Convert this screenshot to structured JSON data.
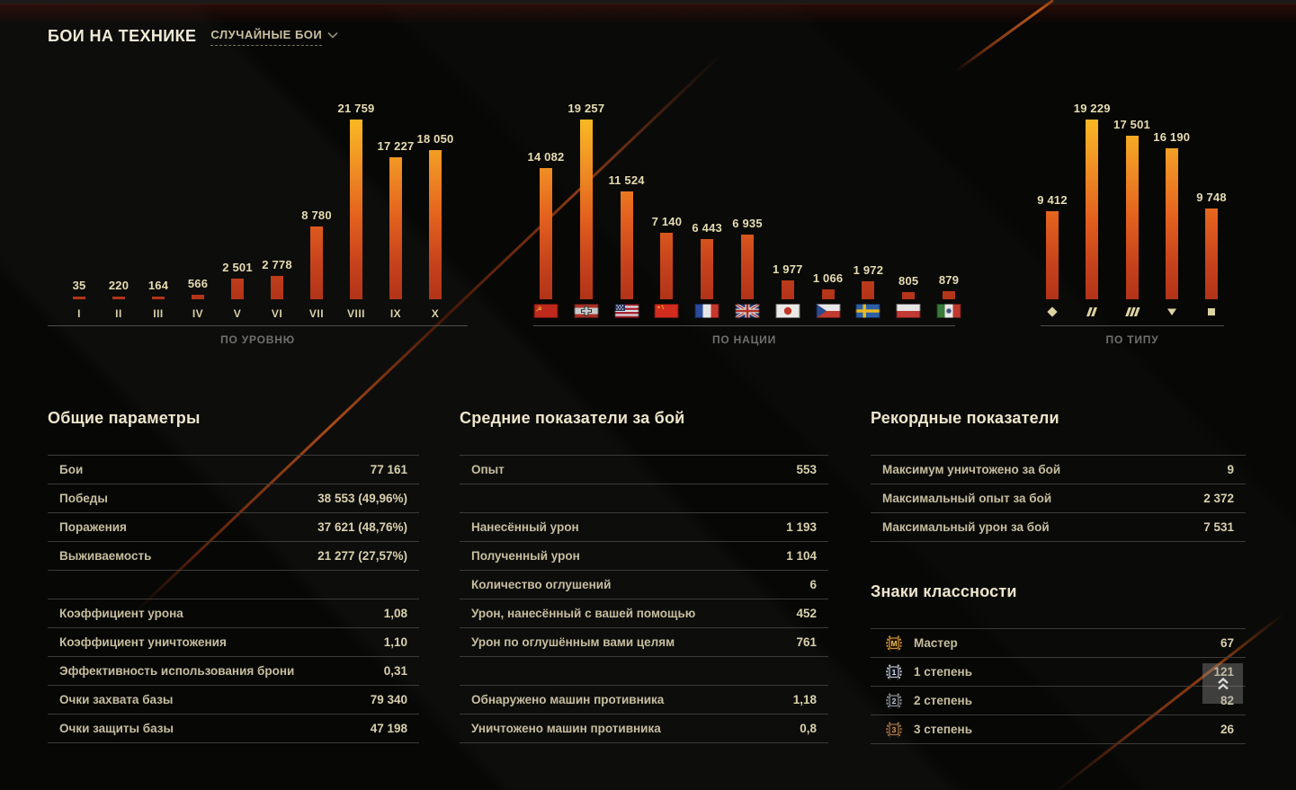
{
  "header": {
    "title": "БОИ НА ТЕХНИКЕ",
    "filter_label": "СЛУЧАЙНЫЕ БОИ",
    "filter_icon": "chevron-down-icon"
  },
  "chart_data": [
    {
      "type": "bar",
      "id": "by-level",
      "axis_title": "ПО УРОВНЮ",
      "category_kind": "roman-tier",
      "categories": [
        "I",
        "II",
        "III",
        "IV",
        "V",
        "VI",
        "VII",
        "VIII",
        "IX",
        "X"
      ],
      "values": [
        35,
        220,
        164,
        566,
        2501,
        2778,
        8780,
        21759,
        17227,
        18050
      ],
      "value_labels": [
        "35",
        "220",
        "164",
        "566",
        "2 501",
        "2 778",
        "8 780",
        "21 759",
        "17 227",
        "18 050"
      ],
      "ylim": [
        0,
        21759
      ],
      "grid": false,
      "legend": "none"
    },
    {
      "type": "bar",
      "id": "by-nation",
      "axis_title": "ПО НАЦИИ",
      "category_kind": "flag",
      "categories": [
        "ussr",
        "germany",
        "usa",
        "china",
        "france",
        "uk",
        "japan",
        "czech",
        "sweden",
        "poland",
        "italy"
      ],
      "values": [
        14082,
        19257,
        11524,
        7140,
        6443,
        6935,
        1977,
        1066,
        1972,
        805,
        879
      ],
      "value_labels": [
        "14 082",
        "19 257",
        "11 524",
        "7 140",
        "6 443",
        "6 935",
        "1 977",
        "1 066",
        "1 972",
        "805",
        "879"
      ],
      "ylim": [
        0,
        19257
      ],
      "grid": false,
      "legend": "none"
    },
    {
      "type": "bar",
      "id": "by-type",
      "axis_title": "ПО ТИПУ",
      "category_kind": "vehicle-type-icon",
      "categories": [
        "light-tank",
        "medium-tank",
        "heavy-tank",
        "tank-destroyer",
        "spg"
      ],
      "values": [
        9412,
        19229,
        17501,
        16190,
        9748
      ],
      "value_labels": [
        "9 412",
        "19 229",
        "17 501",
        "16 190",
        "9 748"
      ],
      "ylim": [
        0,
        19229
      ],
      "grid": false,
      "legend": "none"
    }
  ],
  "tables": {
    "general": {
      "title": "Общие параметры",
      "rows": [
        {
          "label": "Бои",
          "value": "77 161"
        },
        {
          "label": "Победы",
          "value": "38 553 (49,96%)"
        },
        {
          "label": "Поражения",
          "value": "37 621 (48,76%)"
        },
        {
          "label": "Выживаемость",
          "value": "21 277 (27,57%)"
        },
        {
          "spacer": true
        },
        {
          "label": "Коэффициент урона",
          "value": "1,08"
        },
        {
          "label": "Коэффициент уничтожения",
          "value": "1,10"
        },
        {
          "label": "Эффективность использования брони",
          "value": "0,31"
        },
        {
          "label": "Очки захвата базы",
          "value": "79 340"
        },
        {
          "label": "Очки защиты базы",
          "value": "47 198"
        }
      ]
    },
    "average": {
      "title": "Средние показатели за бой",
      "rows": [
        {
          "label": "Опыт",
          "value": "553"
        },
        {
          "spacer": true
        },
        {
          "label": "Нанесённый урон",
          "value": "1 193"
        },
        {
          "label": "Полученный урон",
          "value": "1 104"
        },
        {
          "label": "Количество оглушений",
          "value": "6"
        },
        {
          "label": "Урон, нанесённый с вашей помощью",
          "value": "452"
        },
        {
          "label": "Урон по оглушённым вами целям",
          "value": "761"
        },
        {
          "spacer": true
        },
        {
          "label": "Обнаружено машин противника",
          "value": "1,18"
        },
        {
          "label": "Уничтожено машин противника",
          "value": "0,8"
        }
      ]
    },
    "records": {
      "title": "Рекордные показатели",
      "rows": [
        {
          "label": "Максимум уничтожено за бой",
          "value": "9"
        },
        {
          "label": "Максимальный опыт за бой",
          "value": "2 372"
        },
        {
          "label": "Максимальный урон за бой",
          "value": "7 531"
        }
      ]
    },
    "mastery": {
      "title": "Знаки классности",
      "rows": [
        {
          "badge": "master",
          "label": "Мастер",
          "value": "67"
        },
        {
          "badge": "grade1",
          "label": "1 степень",
          "value": "121"
        },
        {
          "badge": "grade2",
          "label": "2 степень",
          "value": "82"
        },
        {
          "badge": "grade3",
          "label": "3 степень",
          "value": "26"
        }
      ]
    }
  },
  "scroll_top": {
    "icon": "double-chevron-up-icon"
  },
  "colors": {
    "bar_gradient_top": "#f9b823",
    "bar_gradient_mid": "#e2601e",
    "bar_gradient_bottom": "#b23318",
    "cream_text": "#d8d0ad",
    "heading_text": "#eee6cc",
    "muted_text": "#707070",
    "row_border": "#3c3b38",
    "accent_streak": "#a84a1a"
  }
}
